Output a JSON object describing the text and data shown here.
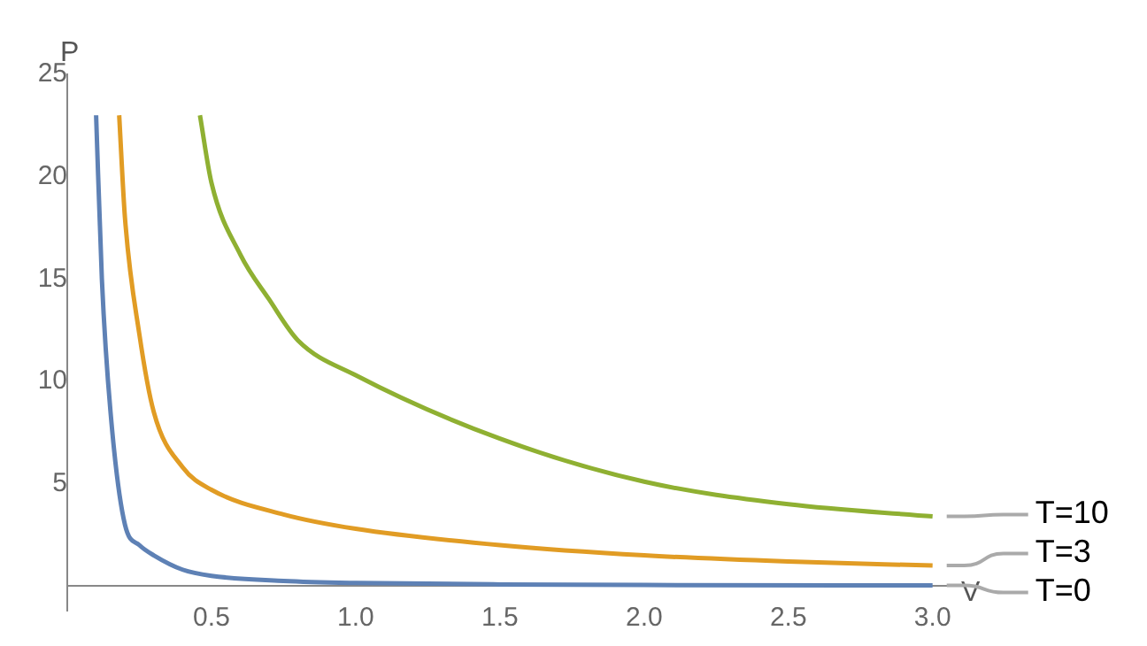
{
  "chart_data": {
    "type": "line",
    "xlabel": "V",
    "ylabel": "P",
    "xlim": [
      0,
      3.05
    ],
    "ylim": [
      -1.2,
      25
    ],
    "xticks": [
      {
        "value": 0.5,
        "label": "0.5"
      },
      {
        "value": 1,
        "label": "1.0"
      },
      {
        "value": 1.5,
        "label": "1.5"
      },
      {
        "value": 2,
        "label": "2.0"
      },
      {
        "value": 2.5,
        "label": "2.5"
      },
      {
        "value": 3,
        "label": "3.0"
      }
    ],
    "yticks": [
      5,
      10,
      15,
      20,
      25
    ],
    "grid": false,
    "legend": false,
    "marker": "none",
    "line_style": "solid",
    "series": [
      {
        "name": "T=0",
        "color": "#5e81b5",
        "x": [
          0.1,
          0.12,
          0.15,
          0.2,
          0.25,
          0.3,
          0.4,
          0.5,
          0.75,
          1,
          1.5,
          2,
          3
        ],
        "values": [
          23,
          15,
          8.5,
          3,
          2,
          1.5,
          0.8,
          0.5,
          0.25,
          0.15,
          0.08,
          0.05,
          0.03
        ]
      },
      {
        "name": "T=3",
        "color": "#e19c24",
        "x": [
          0.18,
          0.2,
          0.25,
          0.3,
          0.4,
          0.5,
          0.75,
          1,
          1.5,
          2,
          2.5,
          3
        ],
        "values": [
          23,
          18,
          12.3,
          8.5,
          5.8,
          4.7,
          3.5,
          2.8,
          2,
          1.5,
          1.2,
          1
        ]
      },
      {
        "name": "T=10",
        "color": "#8fb032",
        "x": [
          0.46,
          0.5,
          0.6,
          0.7,
          0.8,
          1,
          1.5,
          2,
          2.5,
          3
        ],
        "values": [
          23,
          19.7,
          16.2,
          14,
          12,
          10.3,
          7.2,
          5.1,
          4,
          3.4
        ]
      }
    ]
  }
}
